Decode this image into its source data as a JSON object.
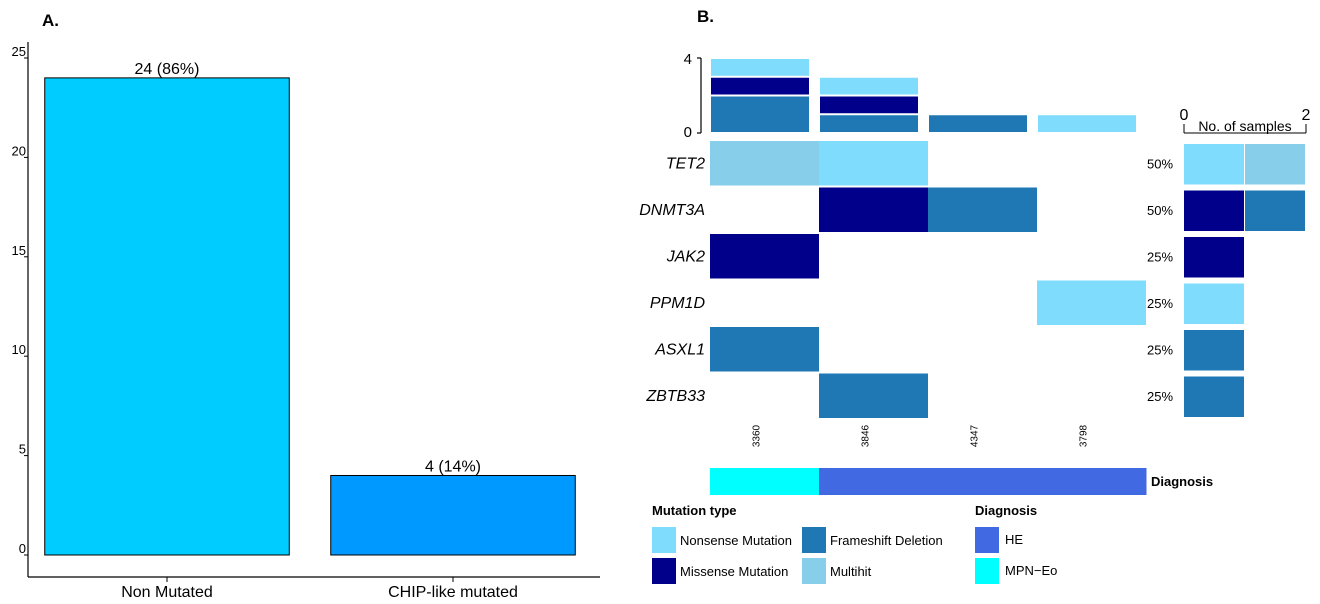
{
  "panels": {
    "a_label": "A.",
    "b_label": "B."
  },
  "colors": {
    "nonsense": "#7fdcfc",
    "missense": "#00008b",
    "frameshift": "#1f78b4",
    "multihit": "#87ceeb",
    "he": "#4169e1",
    "mpn_eo": "#00ffff",
    "bar_non_mutated": "#00ccff",
    "bar_chip": "#0099ff"
  },
  "chart_data": [
    {
      "type": "bar",
      "title": "",
      "xlabel": "",
      "ylabel": "",
      "categories": [
        "Non Mutated",
        "CHIP-like mutated"
      ],
      "values": [
        24,
        4
      ],
      "data_labels": [
        "24 (86%)",
        "4 (14%)"
      ],
      "ylim": [
        0,
        25
      ],
      "yticks": [
        0,
        5,
        10,
        15,
        20,
        25
      ],
      "grid": false
    },
    {
      "type": "heatmap",
      "title": "",
      "samples": [
        "3360",
        "3846",
        "4347",
        "3798"
      ],
      "genes": [
        "TET2",
        "DNMT3A",
        "JAK2",
        "PPM1D",
        "ASXL1",
        "ZBTB33"
      ],
      "cells": [
        [
          "Multihit",
          "Nonsense Mutation",
          "",
          ""
        ],
        [
          "",
          "Missense Mutation",
          "Frameshift Deletion",
          ""
        ],
        [
          "Missense Mutation",
          "",
          "",
          ""
        ],
        [
          "",
          "",
          "",
          "Nonsense Mutation"
        ],
        [
          "Frameshift Deletion",
          "",
          "",
          ""
        ],
        [
          "",
          "Frameshift Deletion",
          "",
          ""
        ]
      ],
      "gene_percent": [
        "50%",
        "50%",
        "25%",
        "25%",
        "25%",
        "25%"
      ],
      "top_bar": {
        "yticks": [
          "0",
          "4"
        ],
        "ymax": 4,
        "stacks": [
          [
            [
              "Frameshift Deletion",
              2
            ],
            [
              "Missense Mutation",
              1
            ],
            [
              "Nonsense Mutation",
              1
            ]
          ],
          [
            [
              "Frameshift Deletion",
              1
            ],
            [
              "Missense Mutation",
              1
            ],
            [
              "Nonsense Mutation",
              1
            ]
          ],
          [
            [
              "Frameshift Deletion",
              1
            ]
          ],
          [
            [
              "Nonsense Mutation",
              1
            ]
          ]
        ]
      },
      "side_bar": {
        "axis_label": "No. of samples",
        "ticks": [
          "0",
          "2"
        ],
        "xmax": 2,
        "rows": [
          [
            [
              "Nonsense Mutation",
              1
            ],
            [
              "Multihit",
              1
            ]
          ],
          [
            [
              "Missense Mutation",
              1
            ],
            [
              "Frameshift Deletion",
              1
            ]
          ],
          [
            [
              "Missense Mutation",
              1
            ]
          ],
          [
            [
              "Nonsense Mutation",
              1
            ]
          ],
          [
            [
              "Frameshift Deletion",
              1
            ]
          ],
          [
            [
              "Frameshift Deletion",
              1
            ]
          ]
        ]
      },
      "annotation": {
        "label": "Diagnosis",
        "values": [
          "MPN−Eo",
          "HE",
          "HE",
          "HE"
        ]
      },
      "legend_mutation": {
        "title": "Mutation type",
        "items": [
          "Nonsense Mutation",
          "Missense Mutation",
          "Frameshift Deletion",
          "Multihit"
        ]
      },
      "legend_diagnosis": {
        "title": "Diagnosis",
        "items": [
          "HE",
          "MPN−Eo"
        ]
      }
    }
  ]
}
